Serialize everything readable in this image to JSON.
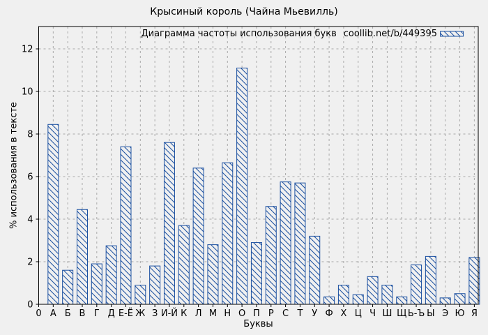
{
  "chart_data": {
    "type": "bar",
    "title": "Крысиный король (Чайна Мьевилль)",
    "legend_label": "Диаграмма частоты использования букв",
    "legend_url": "coollib.net/b/449395",
    "xlabel": "Буквы",
    "ylabel": "% использования в тексте",
    "origin_tick_label": "0",
    "categories": [
      "А",
      "Б",
      "В",
      "Г",
      "Д",
      "Е-Ё",
      "Ж",
      "З",
      "И-Й",
      "К",
      "Л",
      "М",
      "Н",
      "О",
      "П",
      "Р",
      "С",
      "Т",
      "У",
      "Ф",
      "Х",
      "Ц",
      "Ч",
      "Ш",
      "Щ",
      "Ь-Ъ",
      "Ы",
      "Э",
      "Ю",
      "Я"
    ],
    "values": [
      8.45,
      1.6,
      4.45,
      1.9,
      2.75,
      7.4,
      0.9,
      1.8,
      7.6,
      3.7,
      6.4,
      2.8,
      6.65,
      11.1,
      2.9,
      4.6,
      5.75,
      5.7,
      3.2,
      0.35,
      0.9,
      0.45,
      1.3,
      0.9,
      0.35,
      1.85,
      2.25,
      0.3,
      0.5,
      2.2
    ],
    "yticks": [
      0,
      2,
      4,
      6,
      8,
      10,
      12
    ],
    "ylim": [
      0,
      13.05
    ],
    "x_slots": 30.27,
    "grid": true,
    "legend_position": "top-right-inside",
    "colors": {
      "bar_edge": "#1a4fa0",
      "bar_hatch": "#1a4fa0",
      "bar_fill": "#f0f0f0",
      "grid": "#a9a9a9",
      "frame": "#000000",
      "text": "#000000",
      "background": "#f0f0f0"
    }
  }
}
